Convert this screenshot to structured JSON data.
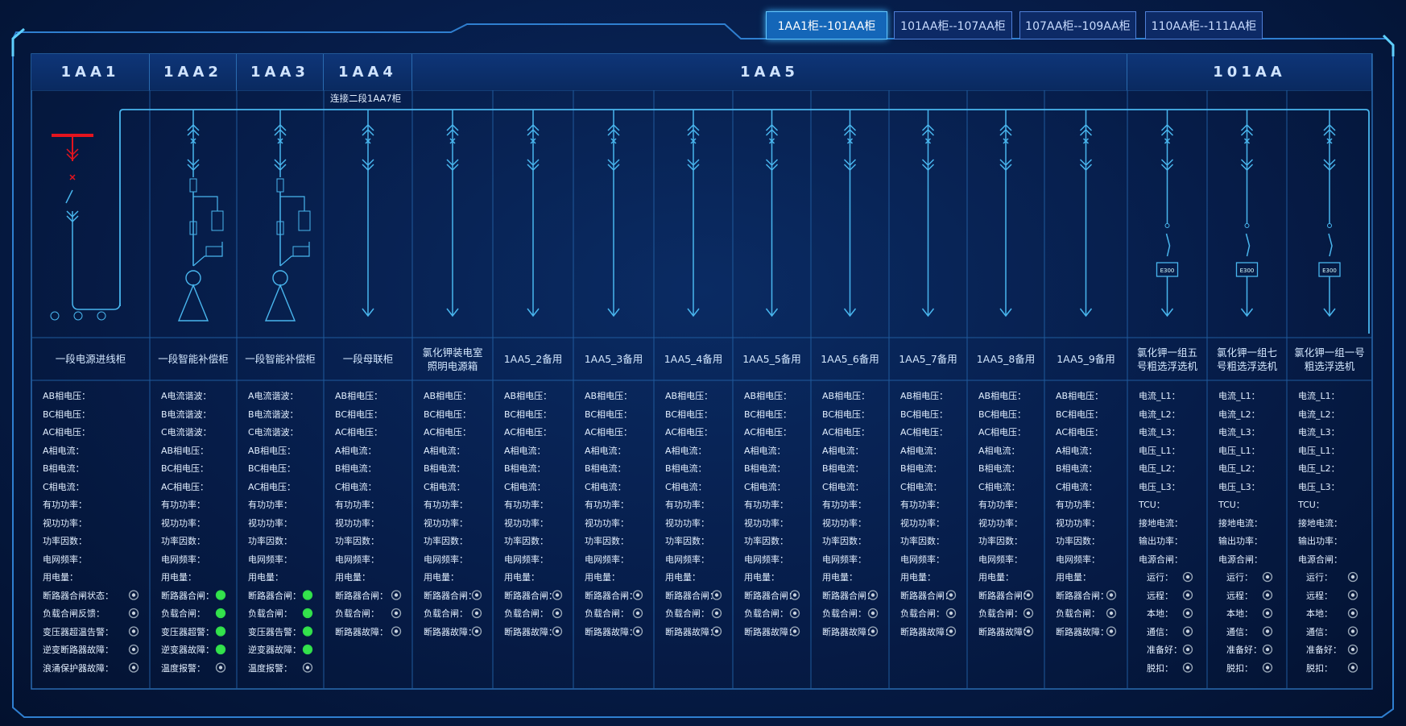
{
  "tabs": [
    {
      "label": "1AA1柜--101AA柜",
      "active": true
    },
    {
      "label": "101AA柜--107AA柜",
      "active": false
    },
    {
      "label": "107AA柜--109AA柜",
      "active": false
    },
    {
      "label": "110AA柜--111AA柜",
      "active": false
    }
  ],
  "groups": [
    {
      "label": "1AA1",
      "span": 1
    },
    {
      "label": "1AA2",
      "span": 1
    },
    {
      "label": "1AA3",
      "span": 1
    },
    {
      "label": "1AA4",
      "span": 1
    },
    {
      "label": "1AA5",
      "span": 9
    },
    {
      "label": "101AA",
      "span": 3
    }
  ],
  "bus_note": "连接二段1AA7柜",
  "cabinets": [
    {
      "name": "一段电源进线柜",
      "diagram": "incoming",
      "params": [
        "AB相电压：",
        "BC相电压：",
        "AC相电压：",
        "A相电流：",
        "B相电流：",
        "C相电流：",
        "有功功率：",
        "视功功率：",
        "功率因数：",
        "电网频率：",
        "用电量："
      ],
      "indicators": [
        {
          "label": "断路器合闸状态：",
          "on": false
        },
        {
          "label": "负载合闸反馈：",
          "on": false
        },
        {
          "label": "变压器超温告警：",
          "on": false
        },
        {
          "label": "逆变断路器故障：",
          "on": false
        },
        {
          "label": "浪涌保护器故障：",
          "on": false
        }
      ]
    },
    {
      "name": "一段智能补偿柜",
      "diagram": "compensation",
      "params": [
        "A电流谐波：",
        "B电流谐波：",
        "C电流谐波：",
        "AB相电压：",
        "BC相电压：",
        "AC相电压：",
        "有功功率：",
        "视功功率：",
        "功率因数：",
        "电网频率：",
        "用电量："
      ],
      "indicators": [
        {
          "label": "断路器合闸：",
          "on": true
        },
        {
          "label": "负载合闸：",
          "on": true
        },
        {
          "label": "变压器超警：",
          "on": true
        },
        {
          "label": "逆变器故障：",
          "on": true
        },
        {
          "label": "温度报警：",
          "on": false
        }
      ]
    },
    {
      "name": "一段智能补偿柜",
      "diagram": "compensation",
      "params": [
        "A电流谐波：",
        "B电流谐波：",
        "C电流谐波：",
        "AB相电压：",
        "BC相电压：",
        "AC相电压：",
        "有功功率：",
        "视功功率：",
        "功率因数：",
        "电网频率：",
        "用电量："
      ],
      "indicators": [
        {
          "label": "断路器合闸：",
          "on": true
        },
        {
          "label": "负载合闸：",
          "on": true
        },
        {
          "label": "变压器告警：",
          "on": true
        },
        {
          "label": "逆变器故障：",
          "on": true
        },
        {
          "label": "温度报警：",
          "on": false
        }
      ]
    },
    {
      "name": "一段母联柜",
      "diagram": "feeder",
      "params": [
        "AB相电压：",
        "BC相电压：",
        "AC相电压：",
        "A相电流：",
        "B相电流：",
        "C相电流：",
        "有功功率：",
        "视功功率：",
        "功率因数：",
        "电网频率：",
        "用电量："
      ],
      "indicators": [
        {
          "label": "断路器合闸：",
          "on": false
        },
        {
          "label": "负载合闸：",
          "on": false
        },
        {
          "label": "断路器故障：",
          "on": false
        }
      ]
    },
    {
      "name": "氯化钾装电室照明电源箱",
      "diagram": "feeder",
      "params": [
        "AB相电压：",
        "BC相电压：",
        "AC相电压：",
        "A相电流：",
        "B相电流：",
        "C相电流：",
        "有功功率：",
        "视功功率：",
        "功率因数：",
        "电网频率：",
        "用电量："
      ],
      "indicators": [
        {
          "label": "断路器合闸：",
          "on": false
        },
        {
          "label": "负载合闸：",
          "on": false
        },
        {
          "label": "断路器故障：",
          "on": false
        }
      ]
    },
    {
      "name": "1AA5_2备用",
      "diagram": "feeder",
      "params": [
        "AB相电压：",
        "BC相电压：",
        "AC相电压：",
        "A相电流：",
        "B相电流：",
        "C相电流：",
        "有功功率：",
        "视功功率：",
        "功率因数：",
        "电网频率：",
        "用电量："
      ],
      "indicators": [
        {
          "label": "断路器合闸：",
          "on": false
        },
        {
          "label": "负载合闸：",
          "on": false
        },
        {
          "label": "断路器故障：",
          "on": false
        }
      ]
    },
    {
      "name": "1AA5_3备用",
      "diagram": "feeder",
      "params": [
        "AB相电压：",
        "BC相电压：",
        "AC相电压：",
        "A相电流：",
        "B相电流：",
        "C相电流：",
        "有功功率：",
        "视功功率：",
        "功率因数：",
        "电网频率：",
        "用电量："
      ],
      "indicators": [
        {
          "label": "断路器合闸：",
          "on": false
        },
        {
          "label": "负载合闸：",
          "on": false
        },
        {
          "label": "断路器故障：",
          "on": false
        }
      ]
    },
    {
      "name": "1AA5_4备用",
      "diagram": "feeder",
      "params": [
        "AB相电压：",
        "BC相电压：",
        "AC相电压：",
        "A相电流：",
        "B相电流：",
        "C相电流：",
        "有功功率：",
        "视功功率：",
        "功率因数：",
        "电网频率：",
        "用电量："
      ],
      "indicators": [
        {
          "label": "断路器合闸：",
          "on": false
        },
        {
          "label": "负载合闸：",
          "on": false
        },
        {
          "label": "断路器故障：",
          "on": false
        }
      ]
    },
    {
      "name": "1AA5_5备用",
      "diagram": "feeder",
      "params": [
        "AB相电压：",
        "BC相电压：",
        "AC相电压：",
        "A相电流：",
        "B相电流：",
        "C相电流：",
        "有功功率：",
        "视功功率：",
        "功率因数：",
        "电网频率：",
        "用电量："
      ],
      "indicators": [
        {
          "label": "断路器合闸：",
          "on": false
        },
        {
          "label": "负载合闸：",
          "on": false
        },
        {
          "label": "断路器故障：",
          "on": false
        }
      ]
    },
    {
      "name": "1AA5_6备用",
      "diagram": "feeder",
      "params": [
        "AB相电压：",
        "BC相电压：",
        "AC相电压：",
        "A相电流：",
        "B相电流：",
        "C相电流：",
        "有功功率：",
        "视功功率：",
        "功率因数：",
        "电网频率：",
        "用电量："
      ],
      "indicators": [
        {
          "label": "断路器合闸：",
          "on": false
        },
        {
          "label": "负载合闸：",
          "on": false
        },
        {
          "label": "断路器故障：",
          "on": false
        }
      ]
    },
    {
      "name": "1AA5_7备用",
      "diagram": "feeder",
      "params": [
        "AB相电压：",
        "BC相电压：",
        "AC相电压：",
        "A相电流：",
        "B相电流：",
        "C相电流：",
        "有功功率：",
        "视功功率：",
        "功率因数：",
        "电网频率：",
        "用电量："
      ],
      "indicators": [
        {
          "label": "断路器合闸：",
          "on": false
        },
        {
          "label": "负载合闸：",
          "on": false
        },
        {
          "label": "断路器故障：",
          "on": false
        }
      ]
    },
    {
      "name": "1AA5_8备用",
      "diagram": "feeder",
      "params": [
        "AB相电压：",
        "BC相电压：",
        "AC相电压：",
        "A相电流：",
        "B相电流：",
        "C相电流：",
        "有功功率：",
        "视功功率：",
        "功率因数：",
        "电网频率：",
        "用电量："
      ],
      "indicators": [
        {
          "label": "断路器合闸：",
          "on": false
        },
        {
          "label": "负载合闸：",
          "on": false
        },
        {
          "label": "断路器故障：",
          "on": false
        }
      ]
    },
    {
      "name": "1AA5_9备用",
      "diagram": "feeder",
      "params": [
        "AB相电压：",
        "BC相电压：",
        "AC相电压：",
        "A相电流：",
        "B相电流：",
        "C相电流：",
        "有功功率：",
        "视功功率：",
        "功率因数：",
        "电网频率：",
        "用电量："
      ],
      "indicators": [
        {
          "label": "断路器合闸：",
          "on": false
        },
        {
          "label": "负载合闸：",
          "on": false
        },
        {
          "label": "断路器故障：",
          "on": false
        }
      ]
    },
    {
      "name": "氯化钾一组五号粗选浮选机",
      "diagram": "motor",
      "device": "E300",
      "params": [
        "电流_L1：",
        "电流_L2：",
        "电流_L3：",
        "电压_L1：",
        "电压_L2：",
        "电压_L3：",
        "TCU：",
        "接地电流：",
        "输出功率：",
        "电源合闸："
      ],
      "indicators": [
        {
          "label": "运行：",
          "on": false
        },
        {
          "label": "远程：",
          "on": false
        },
        {
          "label": "本地：",
          "on": false
        },
        {
          "label": "通信：",
          "on": false
        },
        {
          "label": "准备好：",
          "on": false
        },
        {
          "label": "脱扣：",
          "on": false
        }
      ]
    },
    {
      "name": "氯化钾一组七号粗选浮选机",
      "diagram": "motor",
      "device": "E300",
      "params": [
        "电流_L1：",
        "电流_L2：",
        "电流_L3：",
        "电压_L1：",
        "电压_L2：",
        "电压_L3：",
        "TCU：",
        "接地电流：",
        "输出功率：",
        "电源合闸："
      ],
      "indicators": [
        {
          "label": "运行：",
          "on": false
        },
        {
          "label": "远程：",
          "on": false
        },
        {
          "label": "本地：",
          "on": false
        },
        {
          "label": "通信：",
          "on": false
        },
        {
          "label": "准备好：",
          "on": false
        },
        {
          "label": "脱扣：",
          "on": false
        }
      ]
    },
    {
      "name": "氯化钾一组一号粗选浮选机",
      "diagram": "motor",
      "device": "E300",
      "params": [
        "电流_L1：",
        "电流_L2：",
        "电流_L3：",
        "电压_L1：",
        "电压_L2：",
        "电压_L3：",
        "TCU：",
        "接地电流：",
        "输出功率：",
        "电源合闸："
      ],
      "indicators": [
        {
          "label": "运行：",
          "on": false
        },
        {
          "label": "远程：",
          "on": false
        },
        {
          "label": "本地：",
          "on": false
        },
        {
          "label": "通信：",
          "on": false
        },
        {
          "label": "准备好：",
          "on": false
        },
        {
          "label": "脱扣：",
          "on": false
        }
      ]
    }
  ]
}
